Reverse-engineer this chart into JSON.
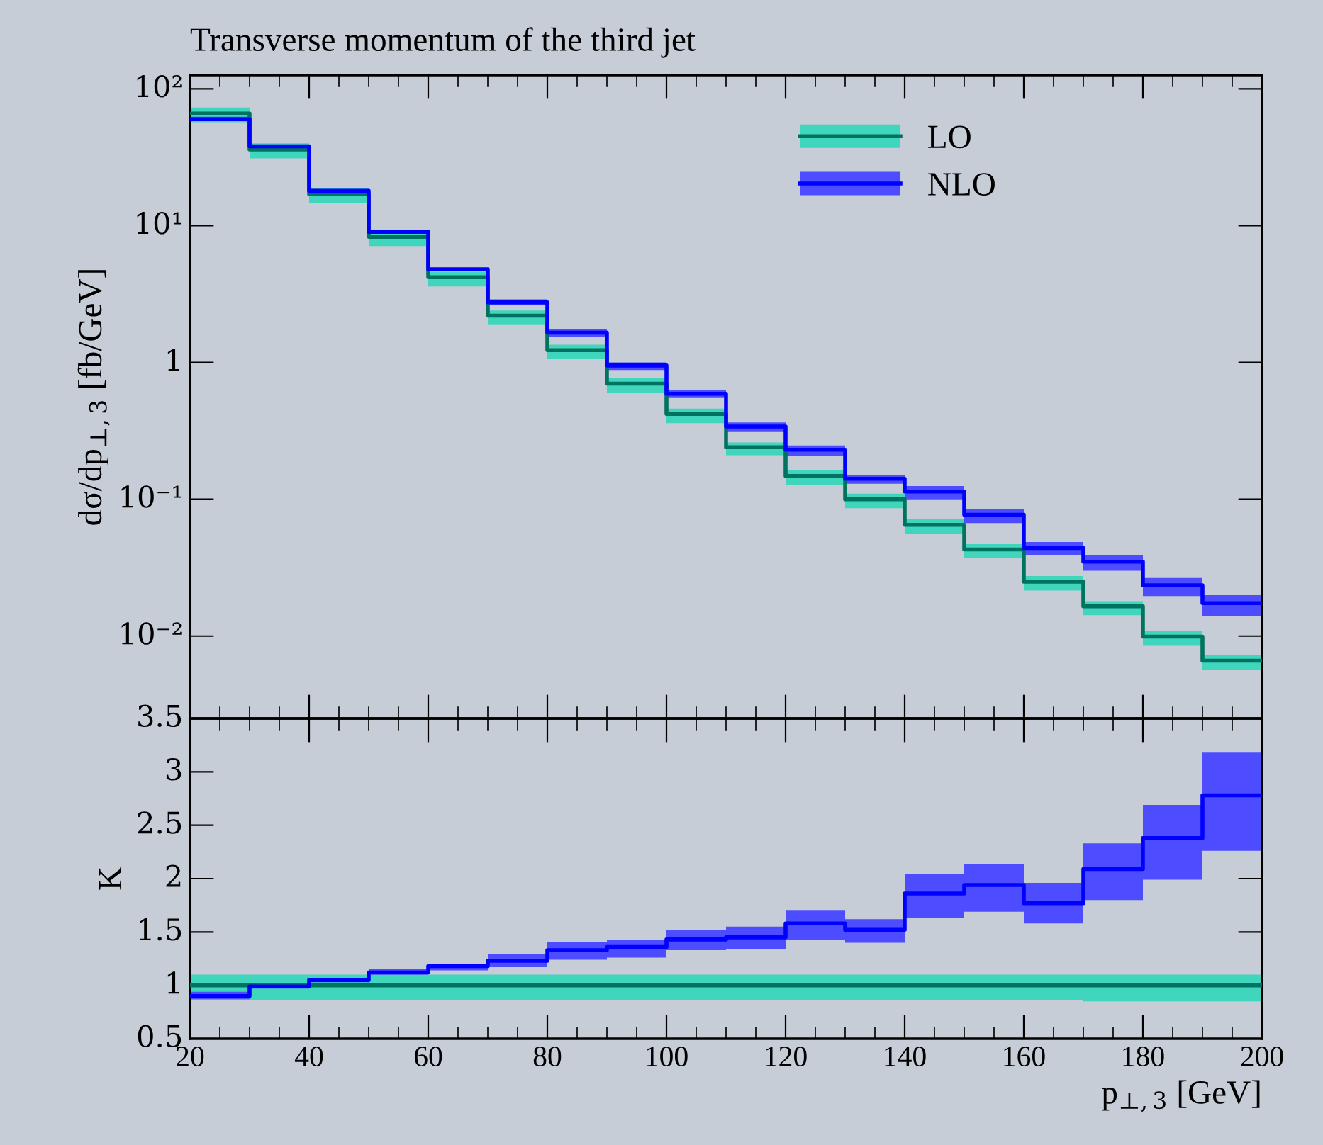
{
  "chart_data": [
    {
      "type": "step",
      "title": "Transverse momentum of the third jet",
      "ylabel": "dσ/dp$_{⊥,3}$ [fb/GeV]",
      "log": "y",
      "legend": "top right",
      "tick_labels": "y",
      "x": [
        20,
        30,
        40,
        50,
        60,
        70,
        80,
        90,
        100,
        110,
        120,
        130,
        140,
        150,
        160,
        170,
        180,
        190,
        200
      ],
      "xlim": [
        20,
        200
      ],
      "ylim": [
        0.0025,
        126
      ],
      "yticks": [
        {
          "value": 0.01,
          "label": "10⁻²"
        },
        {
          "value": 0.1,
          "label": "10⁻¹"
        },
        1,
        {
          "value": 10,
          "label": "10¹"
        },
        {
          "value": 100,
          "label": "10²"
        }
      ],
      "series": [
        {
          "name": "LO",
          "color": "#007360",
          "values": [
            66,
            36,
            17,
            8.3,
            4.2,
            2.2,
            1.23,
            0.7,
            0.42,
            0.24,
            0.148,
            0.1,
            0.065,
            0.043,
            0.025,
            0.0165,
            0.0099,
            0.0066,
            0.0066
          ],
          "lower": [
            57,
            31,
            14.6,
            7.1,
            3.6,
            1.9,
            1.06,
            0.6,
            0.36,
            0.21,
            0.127,
            0.086,
            0.056,
            0.037,
            0.0215,
            0.0142,
            0.0085,
            0.0057,
            0.0057
          ],
          "upper": [
            73,
            40,
            18.7,
            9.1,
            4.6,
            2.4,
            1.35,
            0.77,
            0.46,
            0.26,
            0.163,
            0.11,
            0.072,
            0.047,
            0.0275,
            0.018,
            0.0109,
            0.0073,
            0.0073
          ]
        },
        {
          "name": "NLO",
          "color": "#0000ff",
          "values": [
            60,
            38,
            18,
            9.0,
            4.8,
            2.75,
            1.65,
            0.95,
            0.59,
            0.34,
            0.23,
            0.141,
            0.114,
            0.077,
            0.044,
            0.035,
            0.0235,
            0.0174,
            0.0174
          ],
          "lower": [
            58,
            37.2,
            17.6,
            8.8,
            4.64,
            2.61,
            1.53,
            0.88,
            0.55,
            0.314,
            0.208,
            0.13,
            0.1,
            0.067,
            0.039,
            0.03,
            0.0196,
            0.0141,
            0.0141
          ],
          "upper": [
            62.6,
            39.1,
            18.2,
            9.2,
            4.88,
            2.89,
            1.75,
            1.0,
            0.625,
            0.364,
            0.247,
            0.15,
            0.125,
            0.085,
            0.0487,
            0.039,
            0.0266,
            0.0199,
            0.0199
          ]
        }
      ]
    },
    {
      "type": "step",
      "xlabel": "p$_{⊥,3}$ [GeV]",
      "ylabel": "K",
      "x": [
        20,
        30,
        40,
        50,
        60,
        70,
        80,
        90,
        100,
        110,
        120,
        130,
        140,
        150,
        160,
        170,
        180,
        190,
        200
      ],
      "xlim": [
        20,
        200
      ],
      "ylim": [
        0.5,
        3.5
      ],
      "xticks": [
        20,
        40,
        60,
        80,
        100,
        120,
        140,
        160,
        180,
        200
      ],
      "yticks": [
        0.5,
        1,
        1.5,
        2,
        2.5,
        3,
        3.5
      ],
      "series": [
        {
          "color": "#007360",
          "values": [
            1,
            1,
            1,
            1,
            1,
            1,
            1,
            1,
            1,
            1,
            1,
            1,
            1,
            1,
            1,
            1,
            1,
            1,
            1
          ],
          "lower": [
            0.86,
            0.86,
            0.86,
            0.86,
            0.86,
            0.86,
            0.86,
            0.86,
            0.86,
            0.86,
            0.86,
            0.86,
            0.86,
            0.86,
            0.86,
            0.85,
            0.85,
            0.85,
            0.85
          ],
          "upper": [
            1.1,
            1.1,
            1.1,
            1.1,
            1.1,
            1.1,
            1.1,
            1.1,
            1.1,
            1.1,
            1.1,
            1.1,
            1.1,
            1.1,
            1.1,
            1.1,
            1.1,
            1.1,
            1.1
          ]
        },
        {
          "color": "#0000ff",
          "values": [
            0.9,
            0.99,
            1.05,
            1.12,
            1.18,
            1.23,
            1.33,
            1.36,
            1.43,
            1.45,
            1.58,
            1.52,
            1.86,
            1.94,
            1.77,
            2.09,
            2.38,
            2.78,
            2.78
          ],
          "lower": [
            0.87,
            0.97,
            1.03,
            1.1,
            1.14,
            1.17,
            1.24,
            1.26,
            1.33,
            1.34,
            1.43,
            1.4,
            1.63,
            1.69,
            1.58,
            1.8,
            1.99,
            2.26,
            2.26
          ],
          "upper": [
            0.94,
            1.02,
            1.06,
            1.15,
            1.2,
            1.29,
            1.41,
            1.43,
            1.52,
            1.55,
            1.7,
            1.62,
            2.04,
            2.14,
            1.96,
            2.33,
            2.69,
            3.18,
            3.18
          ]
        }
      ]
    }
  ]
}
